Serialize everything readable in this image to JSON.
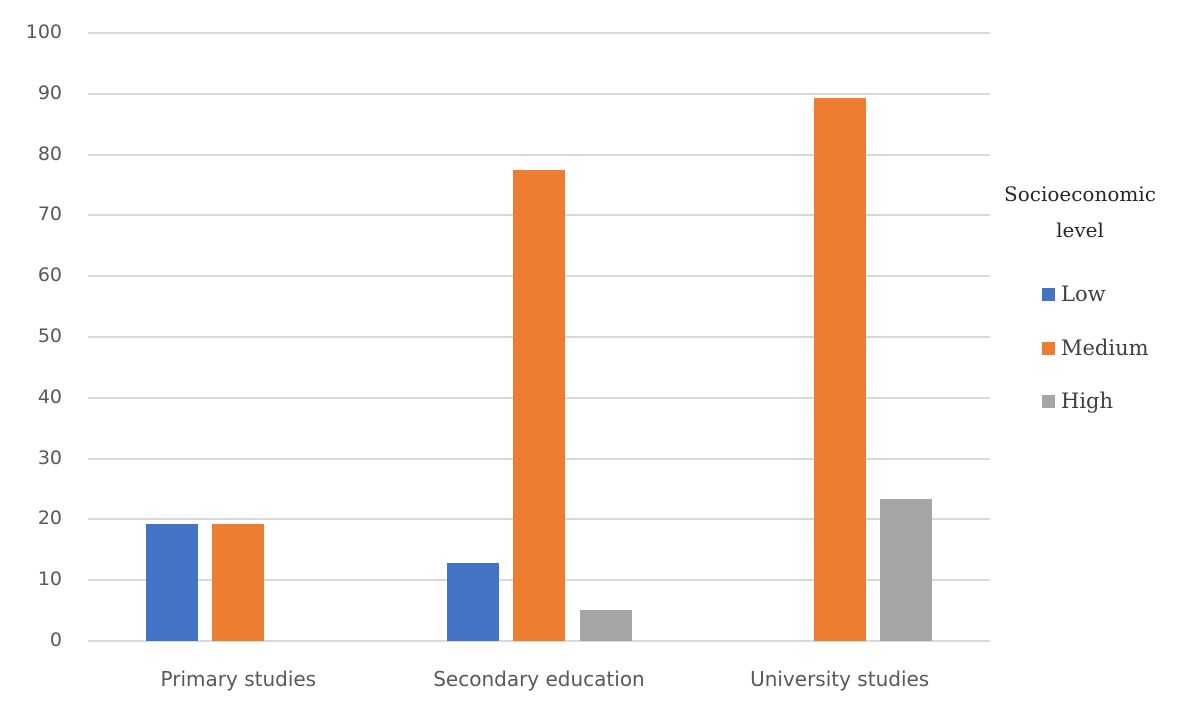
{
  "chart_data": {
    "type": "bar",
    "title": "",
    "xlabel": "",
    "ylabel": "",
    "ylim": [
      0,
      100
    ],
    "yticks": [
      0,
      10,
      20,
      30,
      40,
      50,
      60,
      70,
      80,
      90,
      100
    ],
    "grid": true,
    "legend_position": "right",
    "legend_title": "Socioeconomic level",
    "categories": [
      "Primary studies",
      "Secondary education",
      "University studies"
    ],
    "series": [
      {
        "name": "Low",
        "color": "#4472c4",
        "values": [
          19.3,
          12.9,
          0
        ]
      },
      {
        "name": "Medium",
        "color": "#ed7d31",
        "values": [
          19.3,
          77.4,
          89.3
        ]
      },
      {
        "name": "High",
        "color": "#a5a5a5",
        "values": [
          0,
          5.1,
          23.4
        ]
      }
    ]
  },
  "legend": {
    "title_line1": "Socioeconomic",
    "title_line2": "level",
    "items": [
      {
        "label": "Low",
        "color": "#4472c4"
      },
      {
        "label": "Medium",
        "color": "#ed7d31"
      },
      {
        "label": "High",
        "color": "#a5a5a5"
      }
    ]
  },
  "axis": {
    "y_tick_labels": [
      "0",
      "10",
      "20",
      "30",
      "40",
      "50",
      "60",
      "70",
      "80",
      "90",
      "100"
    ]
  }
}
